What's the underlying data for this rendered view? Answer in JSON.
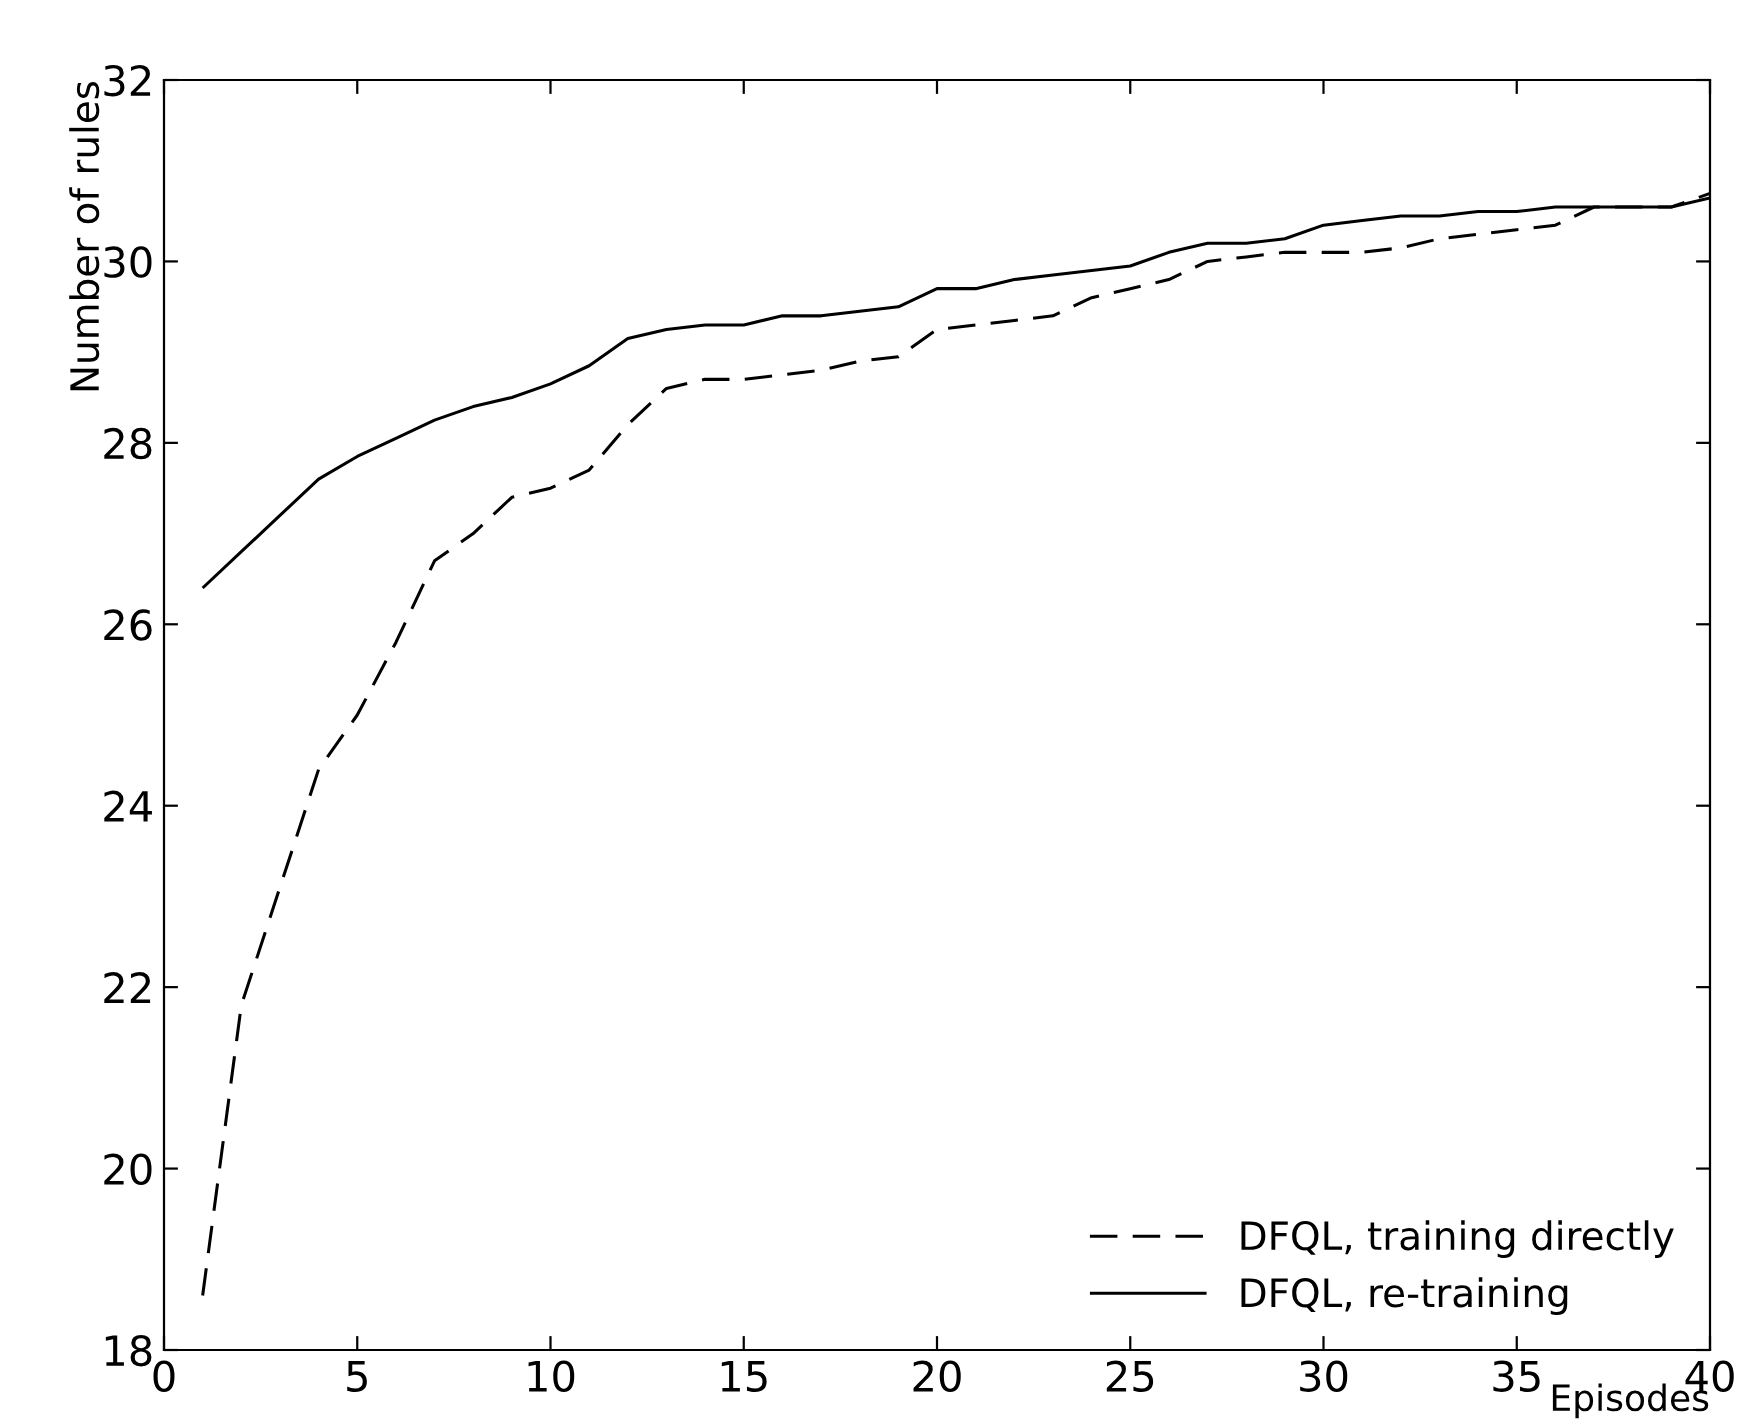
{
  "chart_data": {
    "type": "line",
    "xlabel": "Episodes",
    "ylabel": "Number of rules",
    "x": [
      1,
      2,
      3,
      4,
      5,
      6,
      7,
      8,
      9,
      10,
      11,
      12,
      13,
      14,
      15,
      16,
      17,
      18,
      19,
      20,
      21,
      22,
      23,
      24,
      25,
      26,
      27,
      28,
      29,
      30,
      31,
      32,
      33,
      34,
      35,
      36,
      37,
      38,
      39,
      40
    ],
    "series": [
      {
        "name": "DFQL, training directly",
        "color": "#000000",
        "line_style": "dashed",
        "values": [
          18.6,
          21.8,
          23.1,
          24.4,
          25.0,
          25.8,
          26.7,
          27.0,
          27.4,
          27.5,
          27.7,
          28.2,
          28.6,
          28.7,
          28.7,
          28.75,
          28.8,
          28.9,
          28.95,
          29.25,
          29.3,
          29.35,
          29.4,
          29.6,
          29.7,
          29.8,
          30.0,
          30.05,
          30.1,
          30.1,
          30.1,
          30.15,
          30.25,
          30.3,
          30.35,
          30.4,
          30.6,
          30.6,
          30.6,
          30.75
        ]
      },
      {
        "name": "DFQL, re-training",
        "color": "#000000",
        "line_style": "solid",
        "values": [
          26.4,
          26.8,
          27.2,
          27.6,
          27.85,
          28.05,
          28.25,
          28.4,
          28.5,
          28.65,
          28.85,
          29.15,
          29.25,
          29.3,
          29.3,
          29.4,
          29.4,
          29.45,
          29.5,
          29.7,
          29.7,
          29.8,
          29.85,
          29.9,
          29.95,
          30.1,
          30.2,
          30.2,
          30.25,
          30.4,
          30.45,
          30.5,
          30.5,
          30.55,
          30.55,
          30.6,
          30.6,
          30.6,
          30.6,
          30.7
        ]
      }
    ],
    "xlim": [
      0,
      40
    ],
    "xticks": [
      0,
      5,
      10,
      15,
      20,
      25,
      30,
      35,
      40
    ],
    "ylim": [
      18,
      32
    ],
    "yticks": [
      18,
      20,
      22,
      24,
      26,
      28,
      30,
      32
    ],
    "grid": false,
    "legend": "bottom right"
  }
}
